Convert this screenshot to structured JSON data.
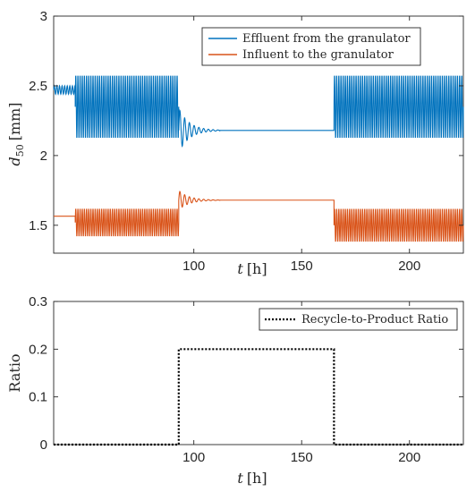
{
  "chart_data": [
    {
      "type": "line",
      "xlabel_symbol": "t",
      "xlabel_unit": "[h]",
      "ylabel_symbol": "d",
      "ylabel_subscript": "50",
      "ylabel_unit": "[mm]",
      "xlim": [
        35,
        225
      ],
      "ylim": [
        1.3,
        3.0
      ],
      "xticks": [
        100,
        150,
        200
      ],
      "yticks": [
        1.5,
        2.0,
        2.5,
        3.0
      ],
      "ytick_labels": [
        "1.5",
        "2",
        "2.5",
        "3"
      ],
      "grid": false,
      "legend_position": "top-right",
      "series": [
        {
          "name": "Effluent from the granulator",
          "color": "#0072BD",
          "segments": [
            {
              "x0": 35,
              "x1": 45,
              "kind": "osc",
              "center": 2.47,
              "amp0": 0.03,
              "amp1": 0.03,
              "period": 1.2
            },
            {
              "x0": 45,
              "x1": 93,
              "kind": "osc",
              "center": 2.35,
              "amp0": 0.23,
              "amp1": 0.23,
              "period": 1.0
            },
            {
              "x0": 93,
              "x1": 112,
              "kind": "damped",
              "center": 2.18,
              "amp0": 0.16,
              "amp1": 0.0,
              "period": 2.2
            },
            {
              "x0": 112,
              "x1": 165,
              "kind": "flat",
              "center": 2.18
            },
            {
              "x0": 165,
              "x1": 225,
              "kind": "osc",
              "center": 2.35,
              "amp0": 0.23,
              "amp1": 0.23,
              "period": 1.0
            }
          ]
        },
        {
          "name": "Influent to the granulator",
          "color": "#D95319",
          "segments": [
            {
              "x0": 35,
              "x1": 45,
              "kind": "flat",
              "center": 1.565
            },
            {
              "x0": 45,
              "x1": 93,
              "kind": "osc",
              "center": 1.52,
              "amp0": 0.1,
              "amp1": 0.1,
              "period": 1.0
            },
            {
              "x0": 93,
              "x1": 112,
              "kind": "damped",
              "center": 1.68,
              "amp0": 0.07,
              "amp1": 0.0,
              "period": 2.2
            },
            {
              "x0": 112,
              "x1": 165,
              "kind": "flat",
              "center": 1.68
            },
            {
              "x0": 165,
              "x1": 225,
              "kind": "osc",
              "center": 1.5,
              "amp0": 0.12,
              "amp1": 0.12,
              "period": 1.0
            }
          ]
        }
      ]
    },
    {
      "type": "line",
      "xlabel_symbol": "t",
      "xlabel_unit": "[h]",
      "ylabel": "Ratio",
      "xlim": [
        35,
        225
      ],
      "ylim": [
        0,
        0.3
      ],
      "xticks": [
        100,
        150,
        200
      ],
      "yticks": [
        0,
        0.1,
        0.2,
        0.3
      ],
      "ytick_labels": [
        "0",
        "0.1",
        "0.2",
        "0.3"
      ],
      "grid": false,
      "legend_position": "top-right",
      "series": [
        {
          "name": "Recycle-to-Product Ratio",
          "color": "#000000",
          "style": "dotted",
          "x": [
            35,
            93,
            93,
            165,
            165,
            225
          ],
          "y": [
            0,
            0,
            0.2,
            0.2,
            0,
            0
          ]
        }
      ]
    }
  ]
}
